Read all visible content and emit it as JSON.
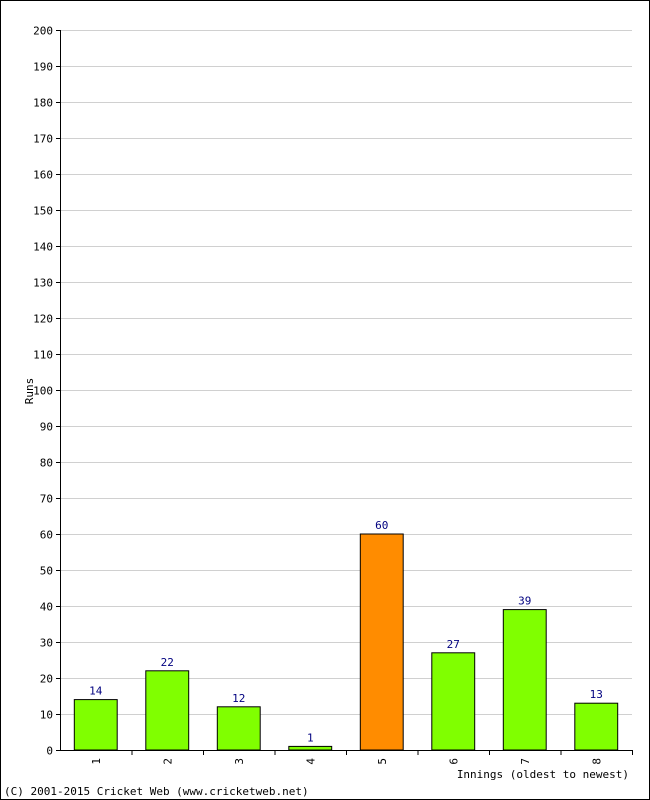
{
  "chart_data": {
    "type": "bar",
    "title": "",
    "xlabel": "Innings (oldest to newest)",
    "ylabel": "Runs",
    "ylim": [
      0,
      200
    ],
    "ytick_step": 10,
    "grid": true,
    "categories": [
      "1",
      "2",
      "3",
      "4",
      "5",
      "6",
      "7",
      "8"
    ],
    "values": [
      14,
      22,
      12,
      1,
      60,
      27,
      39,
      13
    ],
    "highlight_index": 4,
    "colors": {
      "bar": "#80ff00",
      "highlight_bar": "#ff8c00",
      "data_label": "#000080",
      "grid": "#d0d0d0"
    }
  },
  "footer": {
    "copyright": "(C) 2001-2015 Cricket Web (www.cricketweb.net)"
  }
}
